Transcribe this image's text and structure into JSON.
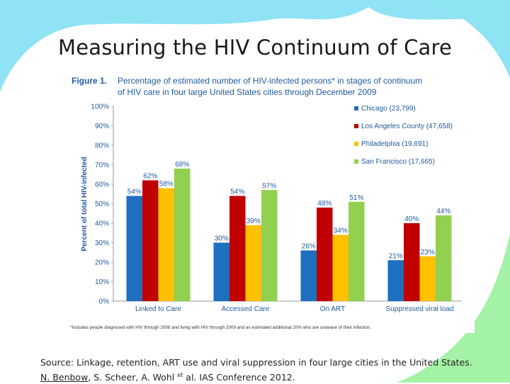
{
  "slide": {
    "title": "Measuring the HIV Continuum of Care"
  },
  "figure": {
    "label": "Figure 1.",
    "caption_line1": "Percentage of estimated number of HIV-infected persons* in stages of continuum",
    "caption_line2": "of HIV care in four large United States cities through December 2009",
    "footnote": "*Includes people diagnosed with HIV through 2008 and living with HIV through 2009 and  an estimated additional 20% who are unaware of their infection."
  },
  "colors": {
    "Chicago": "#1f6fc1",
    "Los Angeles County": "#c00000",
    "Philadelphia": "#ffc000",
    "San Francisco": "#92d050",
    "figure_label": "#1f5a9e",
    "caption": "#1f5a9e"
  },
  "chart_data": {
    "type": "bar",
    "ylabel": "Percent of total HIV-infected",
    "xlabel": "",
    "ylim": [
      0,
      100
    ],
    "yticks": [
      "0%",
      "10%",
      "20%",
      "30%",
      "40%",
      "50%",
      "60%",
      "70%",
      "80%",
      "90%",
      "100%"
    ],
    "categories": [
      "Linked to Care",
      "Accessed Care",
      "On ART",
      "Suppressed viral load"
    ],
    "series": [
      {
        "name": "Chicago",
        "legend": "Chicago (23,799)",
        "values": [
          54,
          30,
          26,
          21
        ]
      },
      {
        "name": "Los Angeles County",
        "legend": "Los Angeles County (47,658)",
        "values": [
          62,
          54,
          48,
          40
        ]
      },
      {
        "name": "Philadelphia",
        "legend": "Philadelphia (19,691)",
        "values": [
          58,
          39,
          34,
          23
        ]
      },
      {
        "name": "San Francisco",
        "legend": "San Francisco (17,665)",
        "values": [
          68,
          57,
          51,
          44
        ]
      }
    ],
    "legend_position": "top-right"
  },
  "source": {
    "line1": "Source: Linkage, retention, ART use and viral suppression in four large cities in the United States.",
    "author_underlined": "N. Benbow",
    "line2_rest": ", S. Scheer, A. Wohl",
    "superscript": "et",
    "line2_end": " al. IAS Conference 2012."
  }
}
